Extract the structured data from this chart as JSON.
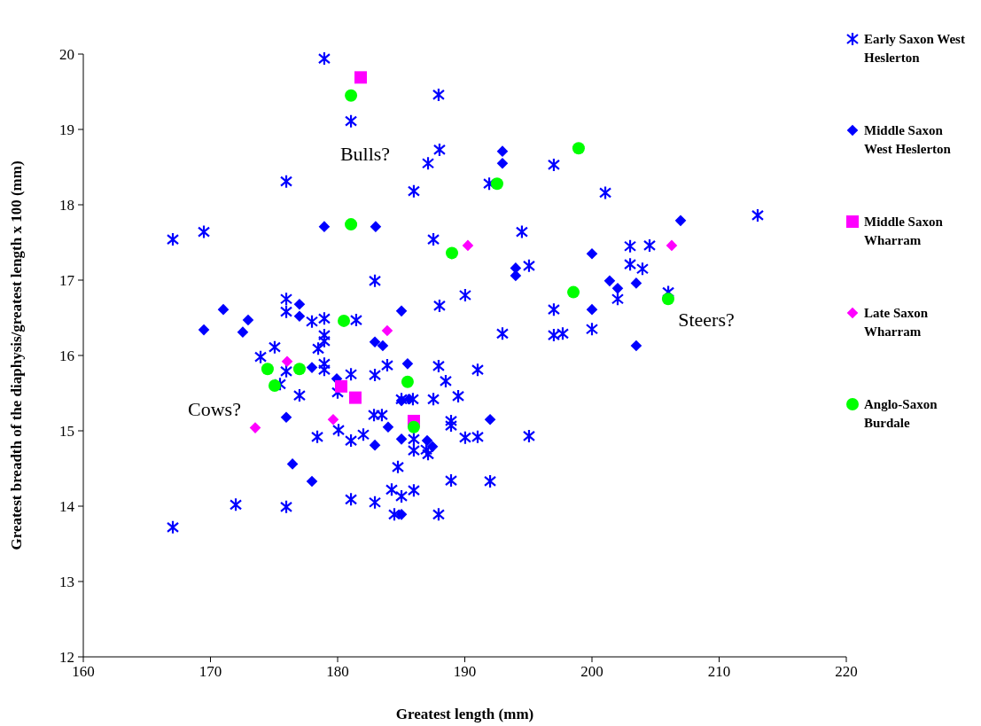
{
  "chart_data": {
    "type": "scatter",
    "xlabel": "Greatest length (mm)",
    "ylabel": "Greatest breadth of the diaphysis/greatest length x 100 (mm)",
    "xlim": [
      160,
      220
    ],
    "ylim": [
      12,
      20
    ],
    "xticks": [
      160,
      170,
      180,
      190,
      200,
      210,
      220
    ],
    "yticks": [
      12,
      13,
      14,
      15,
      16,
      17,
      18,
      19,
      20
    ],
    "grid": false,
    "legend": "top right",
    "annotations": [
      "Bulls?",
      "Cows?",
      "Steers?"
    ],
    "series": [
      {
        "name": "Early Saxon West Heslerton",
        "color": "#0000ff",
        "marker": "cross",
        "x": [
          178.95,
          181.05,
          187.94,
          188.01,
          187.11,
          175.96,
          185.99,
          191.92,
          197.0,
          201.05,
          213.03,
          167.04,
          169.48,
          187.53,
          194.49,
          203.0,
          204.53,
          203.0,
          203.97,
          195.05,
          182.93,
          190.03,
          188.01,
          202.02,
          206.0,
          175.96,
          175.96,
          177.98,
          178.95,
          181.46,
          197.0,
          192.96,
          197.0,
          197.7,
          200.0,
          178.95,
          178.95,
          178.47,
          175.05,
          173.94,
          175.96,
          175.47,
          177.0,
          178.95,
          178.95,
          181.05,
          182.93,
          183.9,
          180.0,
          182.86,
          183.48,
          185.92,
          185.02,
          187.53,
          187.94,
          191.01,
          188.5,
          189.48,
          188.92,
          188.92,
          190.03,
          191.01,
          195.05,
          187.11,
          178.4,
          180.07,
          181.05,
          182.02,
          184.74,
          185.99,
          185.99,
          186.97,
          184.25,
          185.02,
          185.99,
          181.05,
          182.93,
          171.99,
          175.96,
          184.46,
          187.94,
          167.04,
          188.92,
          191.99
        ],
        "values": [
          19.94,
          19.11,
          19.46,
          18.73,
          18.55,
          18.31,
          18.18,
          18.28,
          18.53,
          18.16,
          17.86,
          17.54,
          17.64,
          17.54,
          17.64,
          17.45,
          17.46,
          17.21,
          17.15,
          17.19,
          16.99,
          16.8,
          16.66,
          16.75,
          16.84,
          16.75,
          16.58,
          16.45,
          16.49,
          16.47,
          16.61,
          16.29,
          16.27,
          16.29,
          16.35,
          16.27,
          16.19,
          16.09,
          16.11,
          15.98,
          15.79,
          15.62,
          15.47,
          15.89,
          15.81,
          15.75,
          15.74,
          15.87,
          15.51,
          15.21,
          15.21,
          15.42,
          15.42,
          15.42,
          15.86,
          15.81,
          15.66,
          15.46,
          15.13,
          15.07,
          14.91,
          14.92,
          14.93,
          14.69,
          14.92,
          15.01,
          14.87,
          14.95,
          14.52,
          14.89,
          14.74,
          14.75,
          14.22,
          14.13,
          14.21,
          14.09,
          14.05,
          14.02,
          13.99,
          13.89,
          13.89,
          13.72,
          14.34,
          14.33
        ]
      },
      {
        "name": "Middle Saxon West Heslerton",
        "color": "#0000ff",
        "marker": "diamond",
        "x": [
          178.95,
          182.99,
          171.01,
          172.96,
          169.48,
          172.54,
          177.0,
          177.0,
          185.02,
          177.98,
          179.93,
          175.96,
          176.45,
          177.98,
          182.93,
          183.55,
          185.5,
          185.02,
          185.64,
          183.97,
          185.02,
          182.93,
          187.04,
          187.46,
          185.02,
          192.96,
          192.96,
          194.0,
          194.0,
          200.0,
          201.39,
          202.02,
          203.48,
          206.97,
          200.0,
          203.48,
          191.99
        ],
        "values": [
          17.71,
          17.71,
          16.61,
          16.47,
          16.34,
          16.31,
          16.68,
          16.52,
          16.59,
          15.84,
          15.69,
          15.18,
          14.56,
          14.33,
          16.18,
          16.13,
          15.89,
          15.4,
          15.42,
          15.05,
          14.89,
          14.81,
          14.87,
          14.79,
          13.89,
          18.71,
          18.55,
          17.16,
          17.06,
          17.35,
          16.99,
          16.89,
          16.96,
          17.79,
          16.61,
          16.13,
          15.15
        ]
      },
      {
        "name": "Middle Saxon Wharram",
        "color": "#ff00ff",
        "marker": "square",
        "x": [
          181.81,
          180.28,
          181.39,
          185.99
        ],
        "values": [
          19.69,
          15.59,
          15.44,
          15.13
        ]
      },
      {
        "name": "Late Saxon Wharram",
        "color": "#ff00ff",
        "marker": "diamond",
        "x": [
          183.9,
          176.03,
          179.65,
          173.52,
          190.24,
          206.27
        ],
        "values": [
          16.33,
          15.92,
          15.15,
          15.04,
          17.46,
          17.46
        ]
      },
      {
        "name": "Anglo-Saxon Burdale",
        "color": "#00ff00",
        "marker": "circle",
        "x": [
          181.05,
          181.05,
          180.49,
          198.95,
          192.54,
          188.99,
          198.54,
          205.99,
          174.49,
          177.0,
          175.05,
          185.5,
          185.99
        ],
        "values": [
          19.45,
          17.74,
          16.46,
          18.75,
          18.28,
          17.36,
          16.84,
          16.75,
          15.82,
          15.82,
          15.6,
          15.65,
          15.05
        ]
      }
    ]
  }
}
